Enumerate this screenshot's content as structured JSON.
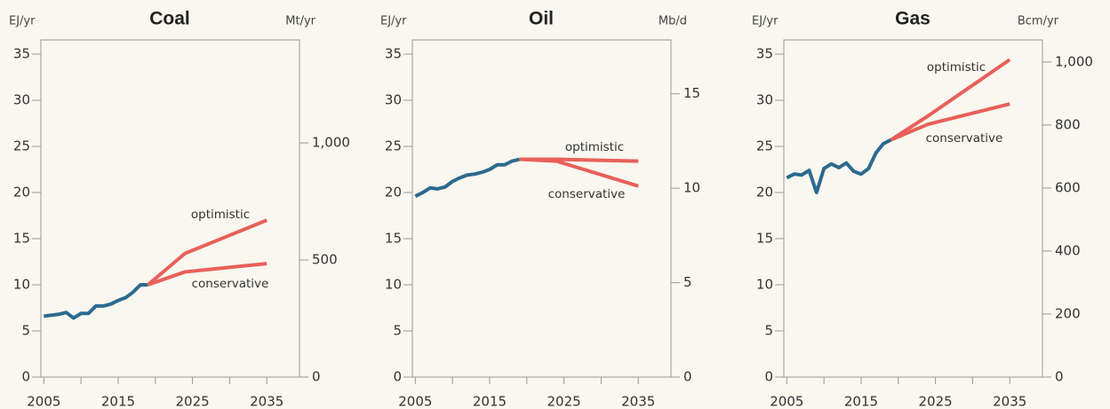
{
  "chart_data": [
    {
      "type": "line",
      "title": "Coal",
      "y_label": "EJ/yr",
      "y2_label": "Mt/yr",
      "xlim": [
        2004.6,
        2039.4
      ],
      "xticks": [
        2005,
        2015,
        2025,
        2035
      ],
      "xminor_ticks": [
        2010,
        2020,
        2030
      ],
      "ylim": [
        0,
        35
      ],
      "yticks": [
        0,
        5,
        10,
        15,
        20,
        25,
        30,
        35
      ],
      "y2lim": [
        0,
        1379
      ],
      "y2ticks": [
        0,
        500,
        {
          "value": 1000,
          "label": "1,000"
        }
      ],
      "series": [
        {
          "color": "#2c6a8f",
          "x": [
            2005,
            2006,
            2007,
            2008,
            2009,
            2010,
            2011,
            2012,
            2013,
            2014,
            2015,
            2016,
            2017,
            2018,
            2019
          ],
          "values": [
            6.6,
            6.7,
            6.8,
            7.0,
            6.4,
            6.9,
            6.9,
            7.7,
            7.7,
            7.9,
            8.3,
            8.6,
            9.2,
            10.0,
            10.0
          ]
        },
        {
          "name": "optimistic",
          "color": "#e8605a",
          "x": [
            2019,
            2024,
            2035
          ],
          "values": [
            10.0,
            13.4,
            17.0
          ]
        },
        {
          "name": "conservative",
          "color": "#e8605a",
          "x": [
            2019,
            2024,
            2035
          ],
          "values": [
            10.0,
            11.4,
            12.3
          ]
        }
      ]
    },
    {
      "type": "line",
      "title": "Oil",
      "y_label": "EJ/yr",
      "y2_label": "Mb/d",
      "xlim": [
        2004.6,
        2039.4
      ],
      "xticks": [
        2005,
        2015,
        2025,
        2035
      ],
      "xminor_ticks": [
        2010,
        2020,
        2030
      ],
      "ylim": [
        0,
        35
      ],
      "yticks": [
        0,
        5,
        10,
        15,
        20,
        25,
        30,
        35
      ],
      "y2lim": [
        0,
        17.1
      ],
      "y2ticks": [
        0,
        5,
        10,
        15
      ],
      "series": [
        {
          "color": "#2c6a8f",
          "x": [
            2005,
            2006,
            2007,
            2008,
            2009,
            2010,
            2011,
            2012,
            2013,
            2014,
            2015,
            2016,
            2017,
            2018,
            2019
          ],
          "values": [
            19.6,
            20.0,
            20.5,
            20.4,
            20.6,
            21.2,
            21.6,
            21.9,
            22.0,
            22.2,
            22.5,
            23.0,
            23.0,
            23.4,
            23.6
          ]
        },
        {
          "name": "optimistic",
          "color": "#e8605a",
          "x": [
            2019,
            2024,
            2035
          ],
          "values": [
            23.6,
            23.6,
            23.4
          ]
        },
        {
          "name": "conservative",
          "color": "#e8605a",
          "x": [
            2019,
            2024,
            2035
          ],
          "values": [
            23.6,
            23.4,
            20.7
          ]
        }
      ]
    },
    {
      "type": "line",
      "title": "Gas",
      "y_label": "EJ/yr",
      "y2_label": "Bcm/yr",
      "xlim": [
        2004.6,
        2039.4
      ],
      "xticks": [
        2005,
        2015,
        2025,
        2035
      ],
      "xminor_ticks": [
        2010,
        2020,
        2030
      ],
      "ylim": [
        0,
        35
      ],
      "yticks": [
        0,
        5,
        10,
        15,
        20,
        25,
        30,
        35
      ],
      "y2lim": [
        0,
        1025
      ],
      "y2ticks": [
        0,
        200,
        400,
        600,
        800,
        {
          "value": 1000,
          "label": "1,000"
        }
      ],
      "series": [
        {
          "color": "#2c6a8f",
          "x": [
            2005,
            2006,
            2007,
            2008,
            2009,
            2010,
            2011,
            2012,
            2013,
            2014,
            2015,
            2016,
            2017,
            2018,
            2019
          ],
          "values": [
            21.6,
            22.0,
            21.9,
            22.4,
            20.0,
            22.6,
            23.1,
            22.7,
            23.2,
            22.3,
            22.0,
            22.6,
            24.3,
            25.3,
            25.7
          ]
        },
        {
          "name": "optimistic",
          "color": "#e8605a",
          "x": [
            2019,
            2024,
            2035
          ],
          "values": [
            25.7,
            28.3,
            34.4
          ]
        },
        {
          "name": "conservative",
          "color": "#e8605a",
          "x": [
            2019,
            2024,
            2035
          ],
          "values": [
            25.7,
            27.4,
            29.6
          ]
        }
      ]
    }
  ]
}
